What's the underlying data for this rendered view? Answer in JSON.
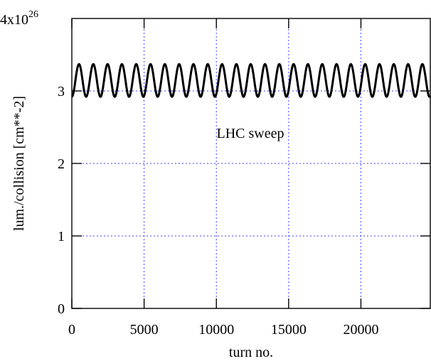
{
  "chart_data": {
    "type": "line",
    "title": "",
    "xlabel": "turn no.",
    "ylabel": "lum./collision [cm**-2]",
    "annotation": "LHC sweep",
    "xlim": [
      0,
      24800
    ],
    "ylim": [
      0,
      4e+26
    ],
    "x_ticks": [
      {
        "value": 0,
        "label": "0"
      },
      {
        "value": 5000,
        "label": "5000"
      },
      {
        "value": 10000,
        "label": "10000"
      },
      {
        "value": 15000,
        "label": "15000"
      },
      {
        "value": 20000,
        "label": "20000"
      }
    ],
    "y_ticks": [
      {
        "value": 0,
        "label": "0"
      },
      {
        "value": 1e+26,
        "label": "1"
      },
      {
        "value": 2e+26,
        "label": "2"
      },
      {
        "value": 3e+26,
        "label": "3"
      }
    ],
    "y_top_label": {
      "value": 4e+26,
      "mantissa": "4x10",
      "exponent": "26"
    },
    "grid": true,
    "colors": {
      "series": "#000000",
      "grid": "#4040ff"
    },
    "series": [
      {
        "description": "oscillating luminosity per collision",
        "baseline": 3.1e+26,
        "min": 2.92e+26,
        "max": 3.37e+26,
        "period_turns": 990,
        "x_start": 0,
        "x_end": 24800
      }
    ]
  }
}
